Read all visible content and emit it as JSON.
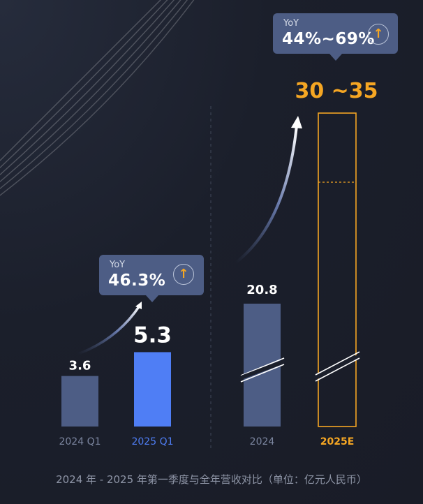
{
  "caption": "2024 年 - 2025 年第一季度与全年营收对比（单位：亿元人民币）",
  "colors": {
    "background": "#1a1e2a",
    "bar_previous": "#4d5d85",
    "bar_current": "#4f7ef5",
    "highlight": "#f5a623",
    "axis_label_grey": "#7c86a0"
  },
  "callouts": [
    {
      "tag": "YoY",
      "value": "46.3%",
      "icon": "arrow-up-circle-icon"
    },
    {
      "tag": "YoY",
      "value": "44%~69%",
      "icon": "arrow-up-circle-icon"
    }
  ],
  "chart_data": [
    {
      "type": "bar",
      "categories": [
        "2024 Q1",
        "2025 Q1"
      ],
      "values": [
        3.6,
        5.3
      ],
      "value_labels": [
        "3.6",
        "5.3"
      ],
      "ylim": [
        0,
        6
      ]
    },
    {
      "type": "bar",
      "categories": [
        "2024",
        "2025E"
      ],
      "values": [
        20.8,
        [
          30,
          35
        ]
      ],
      "value_labels": [
        "20.8",
        "30 ~35"
      ],
      "axis_break": true
    }
  ]
}
